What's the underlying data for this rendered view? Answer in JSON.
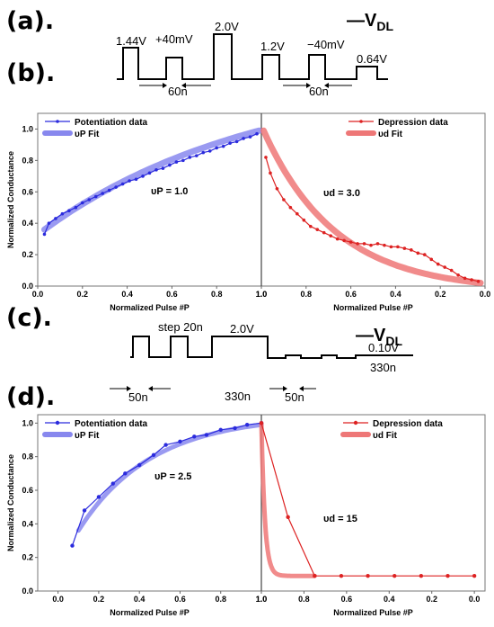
{
  "labels": {
    "a": "(a).",
    "b": "(b).",
    "c": "(c).",
    "d": "(d)."
  },
  "vdl": {
    "main": "V",
    "sub": "DL"
  },
  "waveform_a": {
    "v1": "1.44V",
    "v2": "+40mV",
    "v3": "2.0V",
    "v4": "1.2V",
    "v5": "−40mV",
    "v6": "0.64V",
    "w1": "60n",
    "w2": "60n"
  },
  "waveform_c": {
    "step": "step 20n",
    "v": "2.0V",
    "vlow": "0.10V",
    "w1": "50n",
    "w2": "330n",
    "w3": "50n",
    "w4": "330n"
  },
  "colors": {
    "blue": "#2b2bdd",
    "blue_fit": "#8888ee",
    "red": "#dd2222",
    "red_fit": "#ee7777"
  },
  "chart_data": [
    {
      "type": "line",
      "panel": "b",
      "ylabel": "Normalized Conductance",
      "ylim": [
        0,
        1.1
      ],
      "yticks": [
        "0.0",
        "0.2",
        "0.4",
        "0.6",
        "0.8",
        "1.0"
      ],
      "left": {
        "xlabel": "Normalized Pulse #P",
        "xlim": [
          0,
          1
        ],
        "xticks": [
          "0.0",
          "0.2",
          "0.4",
          "0.6",
          "0.8",
          "1.0"
        ],
        "legend": [
          "Potentiation data",
          "υP Fit"
        ],
        "fit_label": "υP = 1.0",
        "fit_nu": 1.0,
        "data_x": [
          0.03,
          0.05,
          0.08,
          0.11,
          0.14,
          0.17,
          0.2,
          0.23,
          0.26,
          0.29,
          0.32,
          0.35,
          0.38,
          0.41,
          0.44,
          0.47,
          0.5,
          0.53,
          0.56,
          0.59,
          0.62,
          0.65,
          0.68,
          0.71,
          0.74,
          0.77,
          0.8,
          0.83,
          0.86,
          0.89,
          0.92,
          0.95,
          0.98
        ],
        "data_y": [
          0.33,
          0.4,
          0.43,
          0.46,
          0.48,
          0.5,
          0.53,
          0.55,
          0.57,
          0.59,
          0.61,
          0.63,
          0.65,
          0.67,
          0.68,
          0.7,
          0.72,
          0.74,
          0.75,
          0.77,
          0.79,
          0.8,
          0.82,
          0.83,
          0.85,
          0.86,
          0.88,
          0.89,
          0.91,
          0.92,
          0.94,
          0.95,
          0.97
        ]
      },
      "right": {
        "xlabel": "Normalized Pulse #P",
        "xlim": [
          1,
          0
        ],
        "xticks": [
          "1.0",
          "0.8",
          "0.6",
          "0.4",
          "0.2",
          "0.0"
        ],
        "legend": [
          "Depression data",
          "υd Fit"
        ],
        "fit_label": "υd = 3.0",
        "fit_nu": 3.0,
        "data_x": [
          0.98,
          0.96,
          0.93,
          0.9,
          0.87,
          0.84,
          0.81,
          0.78,
          0.75,
          0.72,
          0.69,
          0.66,
          0.63,
          0.6,
          0.57,
          0.54,
          0.51,
          0.48,
          0.45,
          0.42,
          0.39,
          0.36,
          0.33,
          0.3,
          0.27,
          0.24,
          0.21,
          0.18,
          0.15,
          0.12,
          0.09,
          0.06,
          0.03
        ],
        "data_y": [
          0.82,
          0.72,
          0.62,
          0.55,
          0.5,
          0.46,
          0.42,
          0.38,
          0.36,
          0.34,
          0.32,
          0.3,
          0.29,
          0.28,
          0.27,
          0.27,
          0.26,
          0.27,
          0.26,
          0.25,
          0.25,
          0.24,
          0.23,
          0.21,
          0.2,
          0.17,
          0.14,
          0.12,
          0.1,
          0.07,
          0.05,
          0.04,
          0.03
        ]
      }
    },
    {
      "type": "line",
      "panel": "d",
      "ylabel": "Normalized Conductance",
      "ylim": [
        0,
        1.05
      ],
      "yticks": [
        "0.0",
        "0.2",
        "0.4",
        "0.6",
        "0.8",
        "1.0"
      ],
      "left": {
        "xlabel": "Normalized Pulse #P",
        "xlim": [
          -0.1,
          1.0
        ],
        "xticks": [
          "0.0",
          "0.2",
          "0.4",
          "0.6",
          "0.8",
          "1.0"
        ],
        "legend": [
          "Potentiation data",
          "υP Fit"
        ],
        "fit_label": "υP = 2.5",
        "fit_nu": 2.5,
        "data_x": [
          0.07,
          0.13,
          0.2,
          0.27,
          0.33,
          0.4,
          0.47,
          0.53,
          0.6,
          0.67,
          0.73,
          0.8,
          0.87,
          0.93,
          1.0
        ],
        "data_y": [
          0.27,
          0.48,
          0.56,
          0.64,
          0.7,
          0.75,
          0.81,
          0.87,
          0.89,
          0.92,
          0.93,
          0.96,
          0.97,
          0.99,
          1.0
        ]
      },
      "right": {
        "xlabel": "Normalized Pulse #P",
        "xlim": [
          1.0,
          -0.05
        ],
        "xticks": [
          "1.0",
          "0.8",
          "0.6",
          "0.4",
          "0.2",
          "0.0"
        ],
        "legend": [
          "Depression data",
          "υd Fit"
        ],
        "fit_label": "υd = 15",
        "fit_nu": 15,
        "data_x": [
          1.0,
          0.875,
          0.75,
          0.625,
          0.5,
          0.375,
          0.25,
          0.125,
          0.0
        ],
        "data_y": [
          1.0,
          0.44,
          0.09,
          0.09,
          0.09,
          0.09,
          0.09,
          0.09,
          0.09
        ]
      }
    }
  ]
}
